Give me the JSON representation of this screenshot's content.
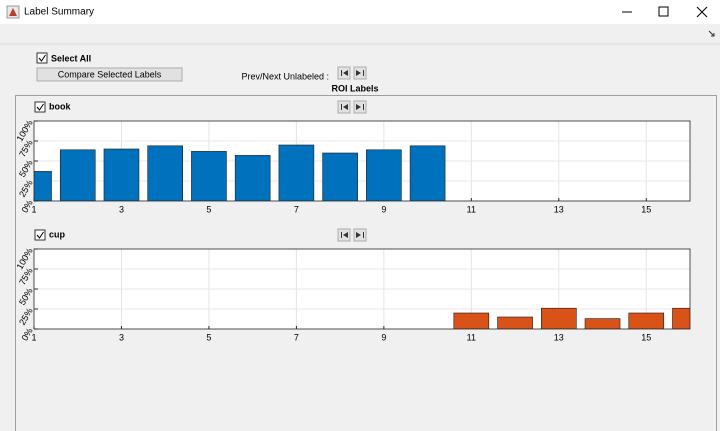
{
  "window": {
    "title": "Label Summary"
  },
  "controls": {
    "select_all": "Select All",
    "compare_button": "Compare Selected Labels",
    "prev_next": "Prev/Next Unlabeled :"
  },
  "panel": {
    "title": "ROI Labels"
  },
  "chart_data": [
    {
      "type": "bar",
      "title": "book",
      "x": [
        1,
        2,
        3,
        4,
        5,
        6,
        7,
        8,
        9,
        10
      ],
      "values": [
        37,
        64,
        65,
        69,
        62,
        57,
        70,
        60,
        64,
        69
      ],
      "color": "#0072bd",
      "xlim": [
        1,
        16
      ],
      "xticks": [
        1,
        3,
        5,
        7,
        9,
        11,
        13,
        15
      ],
      "ylim": [
        0,
        100
      ],
      "yticks": [
        {
          "value": 0,
          "label": "0%"
        },
        {
          "value": 25,
          "label": "25%"
        },
        {
          "value": 50,
          "label": "50%"
        },
        {
          "value": 75,
          "label": "75%"
        },
        {
          "value": 100,
          "label": "100%"
        }
      ],
      "grid": true
    },
    {
      "type": "bar",
      "title": "cup",
      "x": [
        11,
        12,
        13,
        14,
        15,
        16
      ],
      "values": [
        20,
        15,
        26,
        13,
        20,
        26
      ],
      "color": "#d95319",
      "xlim": [
        1,
        16
      ],
      "xticks": [
        1,
        3,
        5,
        7,
        9,
        11,
        13,
        15
      ],
      "ylim": [
        0,
        100
      ],
      "yticks": [
        {
          "value": 0,
          "label": "0%"
        },
        {
          "value": 25,
          "label": "25%"
        },
        {
          "value": 50,
          "label": "50%"
        },
        {
          "value": 75,
          "label": "75%"
        },
        {
          "value": 100,
          "label": "100%"
        }
      ],
      "grid": true
    }
  ]
}
